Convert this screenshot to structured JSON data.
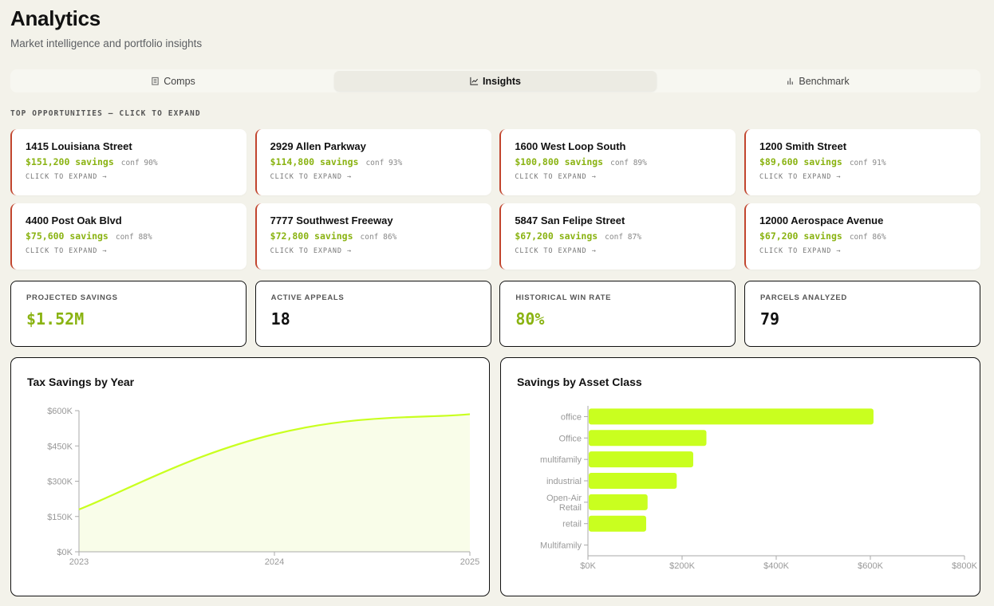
{
  "page": {
    "title": "Analytics",
    "subtitle": "Market intelligence and portfolio insights"
  },
  "tabs": [
    {
      "label": "Comps",
      "icon": "building-icon",
      "active": false
    },
    {
      "label": "Insights",
      "icon": "line-chart-icon",
      "active": true
    },
    {
      "label": "Benchmark",
      "icon": "bar-chart-icon",
      "active": false
    }
  ],
  "section_label": "TOP OPPORTUNITIES — CLICK TO EXPAND",
  "opportunities": [
    {
      "address": "1415 Louisiana Street",
      "savings": "$151,200 savings",
      "conf": "conf 90%",
      "cta": "CLICK TO EXPAND →"
    },
    {
      "address": "2929 Allen Parkway",
      "savings": "$114,800 savings",
      "conf": "conf 93%",
      "cta": "CLICK TO EXPAND →"
    },
    {
      "address": "1600 West Loop South",
      "savings": "$100,800 savings",
      "conf": "conf 89%",
      "cta": "CLICK TO EXPAND →"
    },
    {
      "address": "1200 Smith Street",
      "savings": "$89,600 savings",
      "conf": "conf 91%",
      "cta": "CLICK TO EXPAND →"
    },
    {
      "address": "4400 Post Oak Blvd",
      "savings": "$75,600 savings",
      "conf": "conf 88%",
      "cta": "CLICK TO EXPAND →"
    },
    {
      "address": "7777 Southwest Freeway",
      "savings": "$72,800 savings",
      "conf": "conf 86%",
      "cta": "CLICK TO EXPAND →"
    },
    {
      "address": "5847 San Felipe Street",
      "savings": "$67,200 savings",
      "conf": "conf 87%",
      "cta": "CLICK TO EXPAND →"
    },
    {
      "address": "12000 Aerospace Avenue",
      "savings": "$67,200 savings",
      "conf": "conf 86%",
      "cta": "CLICK TO EXPAND →"
    }
  ],
  "kpis": [
    {
      "label": "PROJECTED SAVINGS",
      "value": "$1.52M",
      "accent": true
    },
    {
      "label": "ACTIVE APPEALS",
      "value": "18",
      "accent": false
    },
    {
      "label": "HISTORICAL WIN RATE",
      "value": "80%",
      "accent": true
    },
    {
      "label": "PARCELS ANALYZED",
      "value": "79",
      "accent": false
    }
  ],
  "colors": {
    "accent": "#c9ff1f",
    "accent_text": "#8ab312",
    "alert_border": "#c2452e",
    "background": "#f3f2ea"
  },
  "chart_data": [
    {
      "type": "area",
      "title": "Tax Savings by Year",
      "x": [
        "2023",
        "2024",
        "2025"
      ],
      "values": [
        180000,
        500000,
        585000
      ],
      "ylim": [
        0,
        600000
      ],
      "yticks": [
        "$0K",
        "$150K",
        "$300K",
        "$450K",
        "$600K"
      ],
      "ytick_values": [
        0,
        150000,
        300000,
        450000,
        600000
      ],
      "xlabel": "",
      "ylabel": "",
      "grid": false,
      "legend": "none"
    },
    {
      "type": "bar",
      "orientation": "horizontal",
      "title": "Savings by Asset Class",
      "categories": [
        "office",
        "Office",
        "multifamily",
        "industrial",
        "Open-Air Retail",
        "retail",
        "Multifamily"
      ],
      "values": [
        605000,
        250000,
        222000,
        187000,
        125000,
        122000,
        0
      ],
      "xlim": [
        0,
        800000
      ],
      "xticks": [
        "$0K",
        "$200K",
        "$400K",
        "$600K",
        "$800K"
      ],
      "xtick_values": [
        0,
        200000,
        400000,
        600000,
        800000
      ],
      "xlabel": "",
      "ylabel": "",
      "grid": false,
      "legend": "none"
    }
  ]
}
